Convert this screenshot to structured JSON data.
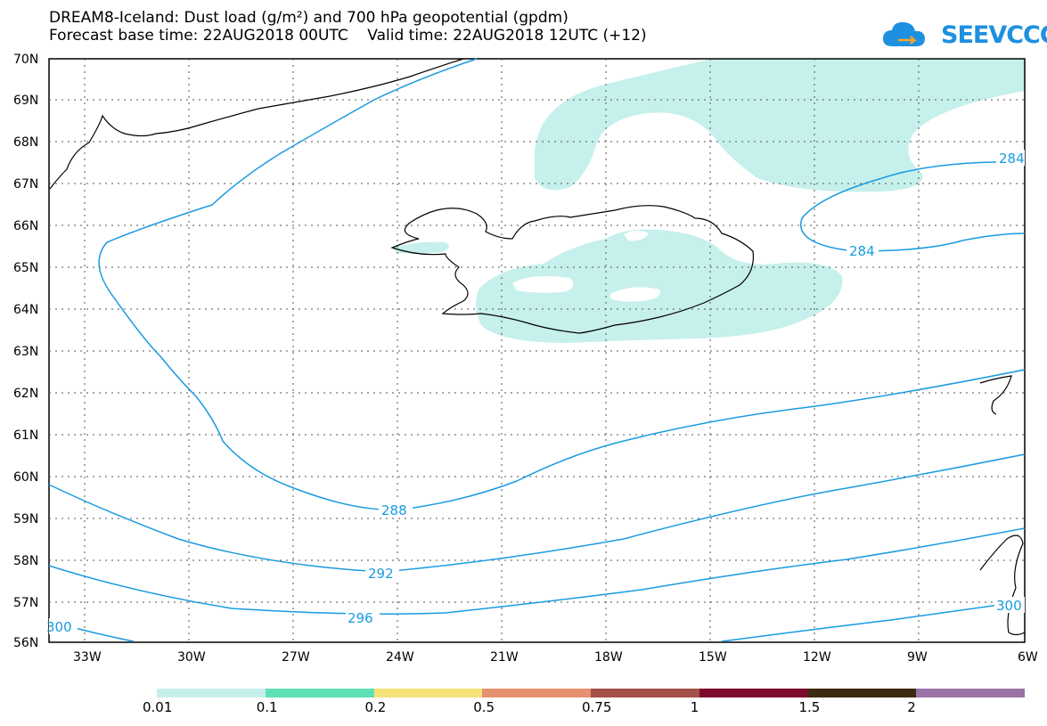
{
  "header": {
    "title_line1": "DREAM8-Iceland: Dust load (g/m²) and 700 hPa geopotential (gpdm)",
    "title_line2": "Forecast base time: 22AUG2018 00UTC    Valid time: 22AUG2018 12UTC (+12)"
  },
  "logo": {
    "text": "SEEVCCC",
    "icon": "cloud-logo-icon",
    "color": "#1e90e0"
  },
  "map": {
    "lat_labels": [
      "70N",
      "69N",
      "68N",
      "67N",
      "66N",
      "65N",
      "64N",
      "63N",
      "62N",
      "61N",
      "60N",
      "59N",
      "58N",
      "57N",
      "56N"
    ],
    "lon_labels": [
      "33W",
      "30W",
      "27W",
      "24W",
      "21W",
      "18W",
      "15W",
      "12W",
      "9W",
      "6W"
    ],
    "contour_color": "#1a9be0",
    "dust_color": "#c6f0ec",
    "contour_labels": [
      "284",
      "284",
      "288",
      "292",
      "296",
      "300",
      "300"
    ]
  },
  "colorbar": {
    "colors": [
      "#c6f0ec",
      "#5fdfb6",
      "#f5e37a",
      "#e59170",
      "#a55048",
      "#7c0a2e",
      "#3c2a12",
      "#9a73a7"
    ],
    "labels": [
      "0.01",
      "0.1",
      "0.2",
      "0.5",
      "0.75",
      "1",
      "1.5",
      "2"
    ]
  }
}
